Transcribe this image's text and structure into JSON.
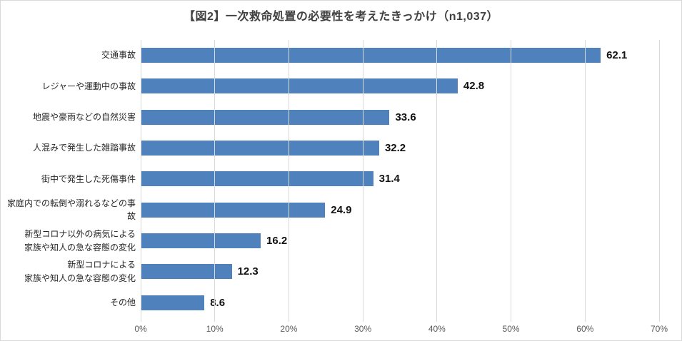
{
  "title": "【図2】一次救命処置の必要性を考えたきっかけ（n1,037）",
  "chart_data": {
    "type": "bar",
    "orientation": "horizontal",
    "title": "【図2】一次救命処置の必要性を考えたきっかけ（n1,037）",
    "categories": [
      "交通事故",
      "レジャーや運動中の事故",
      "地震や豪雨などの自然災害",
      "人混みで発生した雑踏事故",
      "街中で発生した死傷事件",
      "家庭内での転倒や溺れるなどの事故",
      "新型コロナ以外の病気による\n家族や知人の急な容態の変化",
      "新型コロナによる\n家族や知人の急な容態の変化",
      "その他"
    ],
    "values": [
      62.1,
      42.8,
      33.6,
      32.2,
      31.4,
      24.9,
      16.2,
      12.3,
      8.6
    ],
    "xlabel": "",
    "ylabel": "",
    "xlim": [
      0,
      70
    ],
    "x_ticks": [
      "0%",
      "10%",
      "20%",
      "30%",
      "40%",
      "50%",
      "60%",
      "70%"
    ],
    "x_tick_values": [
      0,
      10,
      20,
      30,
      40,
      50,
      60,
      70
    ],
    "grid": "vertical",
    "legend": "none",
    "value_labels": [
      "62.1",
      "42.8",
      "33.6",
      "32.2",
      "31.4",
      "24.9",
      "16.2",
      "12.3",
      "8.6"
    ]
  },
  "colors": {
    "bar": "#4f81bd",
    "title_text": "#404040",
    "category_text": "#262626",
    "value_text": "#111111",
    "axis_text": "#595959",
    "gridline": "#d9d9d9",
    "frame_border": "#d9d9d9",
    "background": "#ffffff"
  }
}
